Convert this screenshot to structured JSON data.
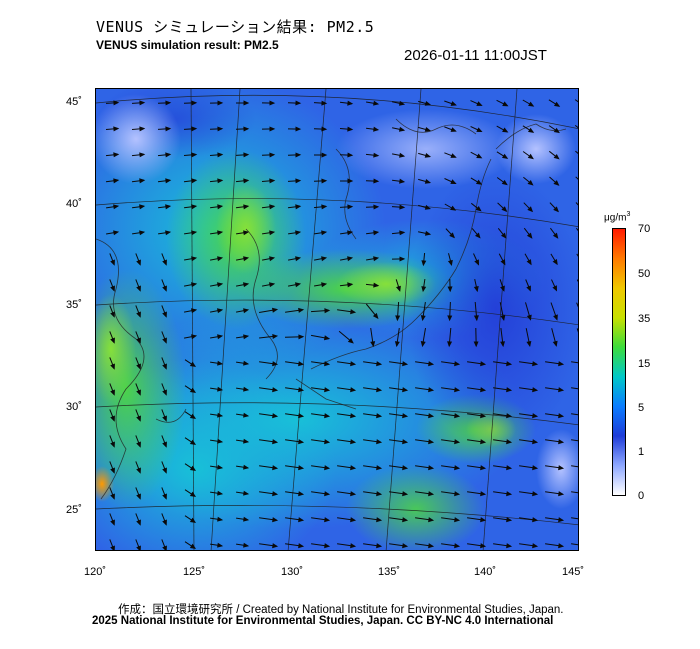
{
  "title_jp": "VENUS シミュレーション結果: PM2.5",
  "title_en": "VENUS simulation result: PM2.5",
  "timestamp": "2026-01-11 11:00JST",
  "unit_base": "μg/m",
  "unit_exp": "3",
  "lat_labels": [
    "45˚",
    "40˚",
    "35˚",
    "30˚",
    "25˚"
  ],
  "lon_labels": [
    "120˚",
    "125˚",
    "130˚",
    "135˚",
    "140˚",
    "145˚"
  ],
  "colorbar": {
    "ticks": [
      "70",
      "50",
      "35",
      "15",
      "5",
      "1",
      "0"
    ],
    "colors": [
      "#ff1a00",
      "#ff7a00",
      "#f0c800",
      "#c8e000",
      "#3cdc3c",
      "#00c8c8",
      "#0a7cff",
      "#1e3cd8",
      "#8ea8ff",
      "#ffffff"
    ]
  },
  "map_colors": {
    "ocean_low": "#2f64e6",
    "ocean_mid": "#12b4e0",
    "land_green": "#3ccc5a",
    "bright_green": "#7ee03c",
    "clean": "#a8b8ff",
    "hotspot": "#ff9a00"
  },
  "credit": "作成：国立環境研究所 / Created by National Institute for Environmental Studies, Japan.",
  "license": "2025 National Institute for Environmental Studies, Japan. CC BY-NC 4.0 International"
}
